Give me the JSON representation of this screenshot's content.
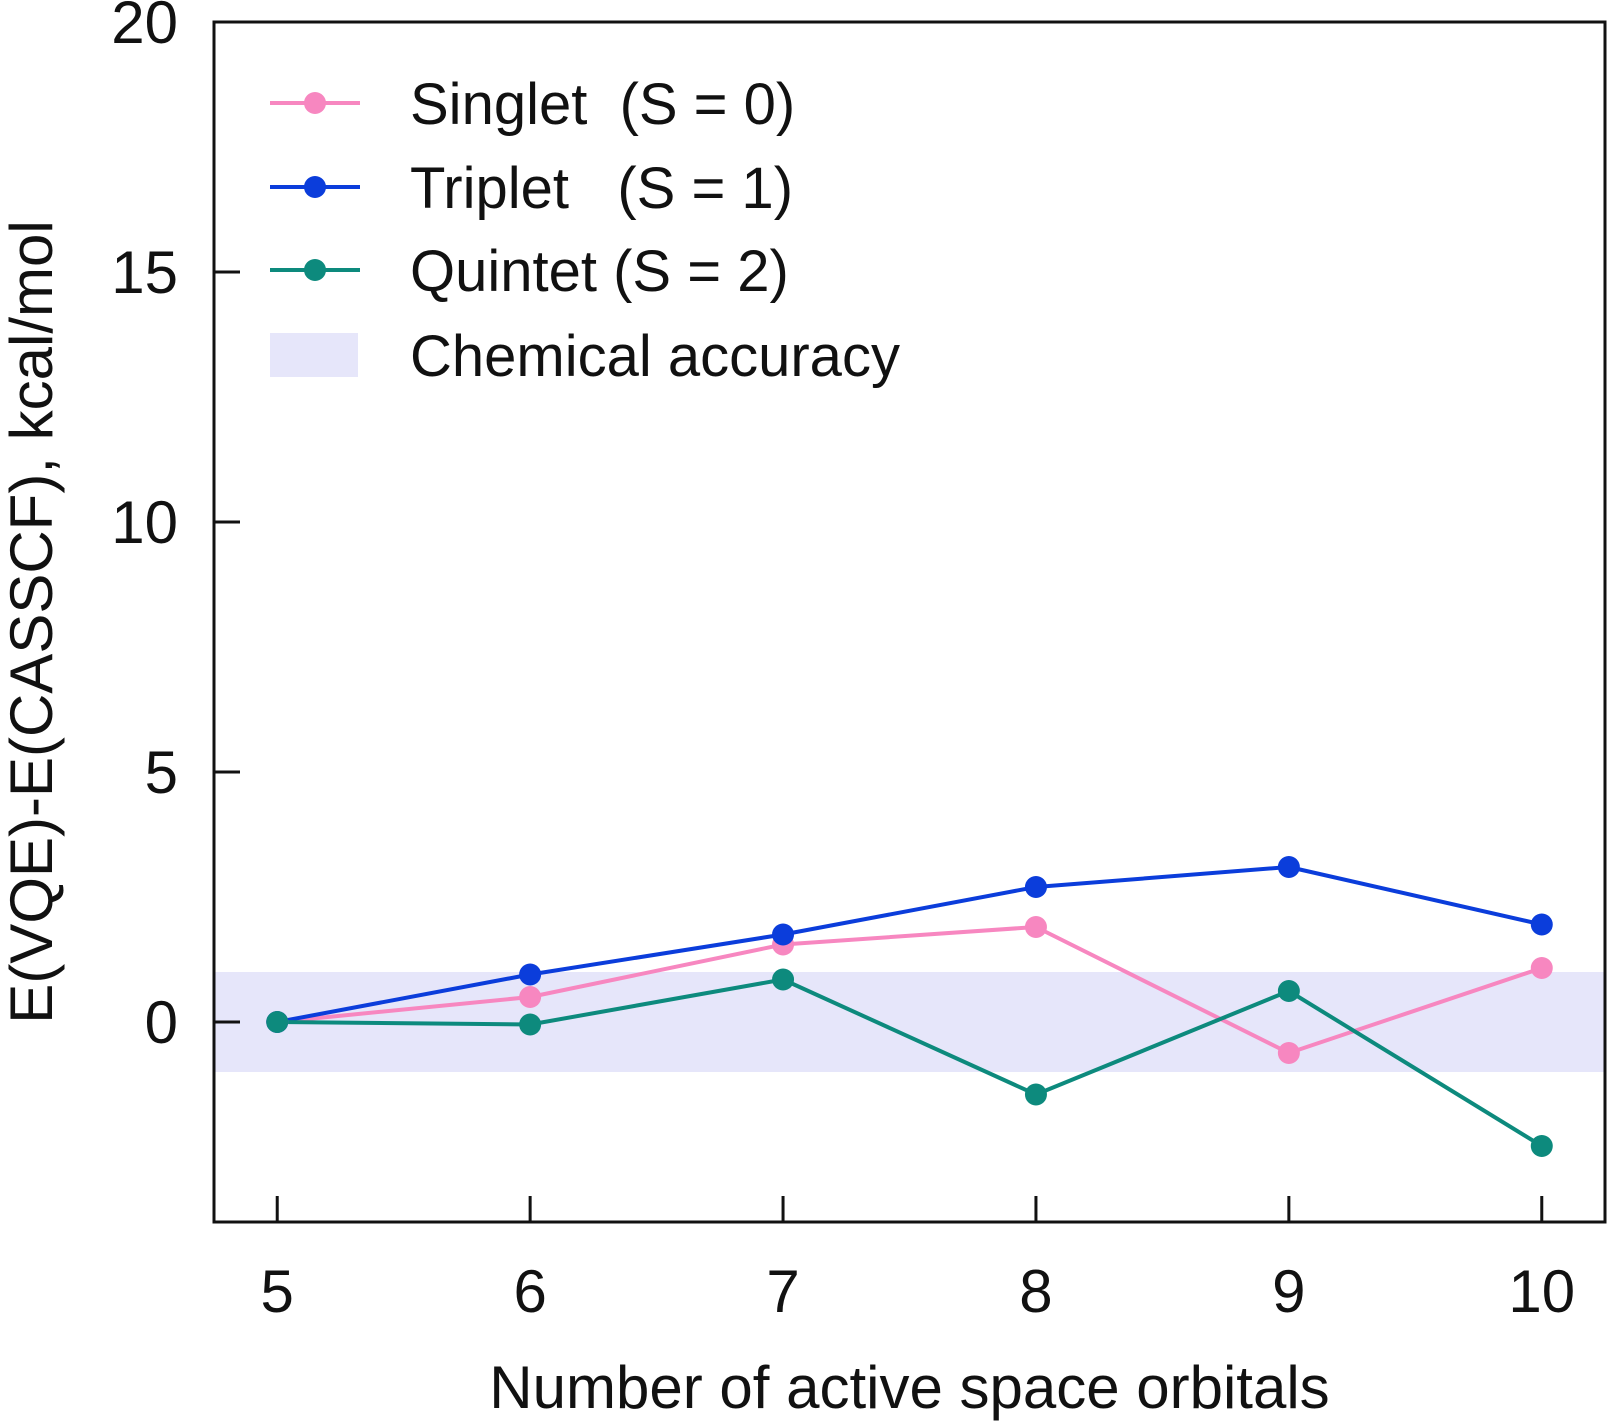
{
  "chart_data": {
    "type": "line",
    "title": "",
    "xlabel": "Number of active space orbitals",
    "ylabel": "E(VQE)-E(CASSCF), kcal/mol",
    "x": [
      5,
      6,
      7,
      8,
      9,
      10
    ],
    "xlim": [
      4.75,
      10.25
    ],
    "ylim": [
      -4,
      20
    ],
    "x_ticks": [
      "5",
      "6",
      "7",
      "8",
      "9",
      "10"
    ],
    "y_ticks": [
      "0",
      "5",
      "10",
      "15",
      "20"
    ],
    "y_tick_values": [
      0,
      5,
      10,
      15,
      20
    ],
    "grid": false,
    "legend_position": "top-left",
    "accuracy_band": {
      "label": "Chemical accuracy",
      "range": [
        -1,
        1
      ],
      "color": "#e6e6fa"
    },
    "series": [
      {
        "name": "Singlet  (S = 0)",
        "color": "#f787c0",
        "values": [
          0.0,
          0.5,
          1.55,
          1.9,
          -0.62,
          1.08
        ]
      },
      {
        "name": "Triplet   (S = 1)",
        "color": "#0b3ddb",
        "values": [
          0.0,
          0.95,
          1.75,
          2.7,
          3.1,
          1.95
        ]
      },
      {
        "name": "Quintet (S = 2)",
        "color": "#0d8a7d",
        "values": [
          0.0,
          -0.05,
          0.85,
          -1.45,
          0.62,
          -2.48
        ]
      }
    ]
  }
}
